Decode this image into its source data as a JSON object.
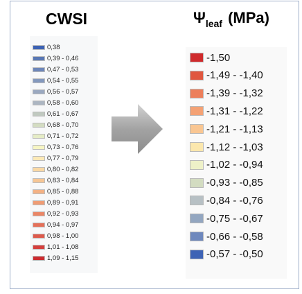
{
  "cwsi": {
    "title": "CWSI",
    "items": [
      {
        "label": "0,38",
        "color": "#3c62b3"
      },
      {
        "label": "0,39 - 0,46",
        "color": "#5877b4"
      },
      {
        "label": "0,47 - 0,53",
        "color": "#6d86b9"
      },
      {
        "label": "0,54 - 0,55",
        "color": "#8398bd"
      },
      {
        "label": "0,56 - 0,57",
        "color": "#9aa8c0"
      },
      {
        "label": "0,58 - 0,60",
        "color": "#acb6c2"
      },
      {
        "label": "0,61 - 0,67",
        "color": "#c0c9c0"
      },
      {
        "label": "0,68 - 0,70",
        "color": "#d3dcc2"
      },
      {
        "label": "0,71 - 0,72",
        "color": "#e5ecc6"
      },
      {
        "label": "0,73 - 0,76",
        "color": "#f6f5c3"
      },
      {
        "label": "0,77 - 0,79",
        "color": "#fbe9b6"
      },
      {
        "label": "0,80 - 0,82",
        "color": "#f9d8a4"
      },
      {
        "label": "0,83 - 0,84",
        "color": "#f6c695"
      },
      {
        "label": "0,85 - 0,88",
        "color": "#f3b184"
      },
      {
        "label": "0,89 - 0,91",
        "color": "#ef9c74"
      },
      {
        "label": "0,92 - 0,93",
        "color": "#ea8666"
      },
      {
        "label": "0,94 - 0,97",
        "color": "#e47059"
      },
      {
        "label": "0,98 - 1,00",
        "color": "#dd5a4c"
      },
      {
        "label": "1,01 - 1,08",
        "color": "#d53e3c"
      },
      {
        "label": "1,09 - 1,15",
        "color": "#cc2a2f"
      }
    ]
  },
  "psi": {
    "title_main": "Ψ",
    "title_sub": "leaf",
    "title_unit": "(MPa)",
    "items": [
      {
        "label": "-1,50",
        "color": "#cf2a2c"
      },
      {
        "label": "-1,49 - -1,40",
        "color": "#e0573f"
      },
      {
        "label": "-1,39 - -1,32",
        "color": "#ec7f5b"
      },
      {
        "label": "-1,31 - -1,22",
        "color": "#f4a275"
      },
      {
        "label": "-1,21 - -1,13",
        "color": "#f9c692"
      },
      {
        "label": "-1,12 - -1,03",
        "color": "#fbe7ad"
      },
      {
        "label": "-1,02 - -0,94",
        "color": "#eef1c8"
      },
      {
        "label": "-0,93 - -0,85",
        "color": "#d3dcc1"
      },
      {
        "label": "-0,84 - -0,76",
        "color": "#b7c0c4"
      },
      {
        "label": "-0,75 - -0,67",
        "color": "#93a6c0"
      },
      {
        "label": "-0,66 - -0,58",
        "color": "#6e88bd"
      },
      {
        "label": "-0,57 - -0,50",
        "color": "#3e63b5"
      }
    ]
  },
  "arrow": {
    "icon": "right-arrow-icon",
    "color": "#9a9a9a"
  }
}
